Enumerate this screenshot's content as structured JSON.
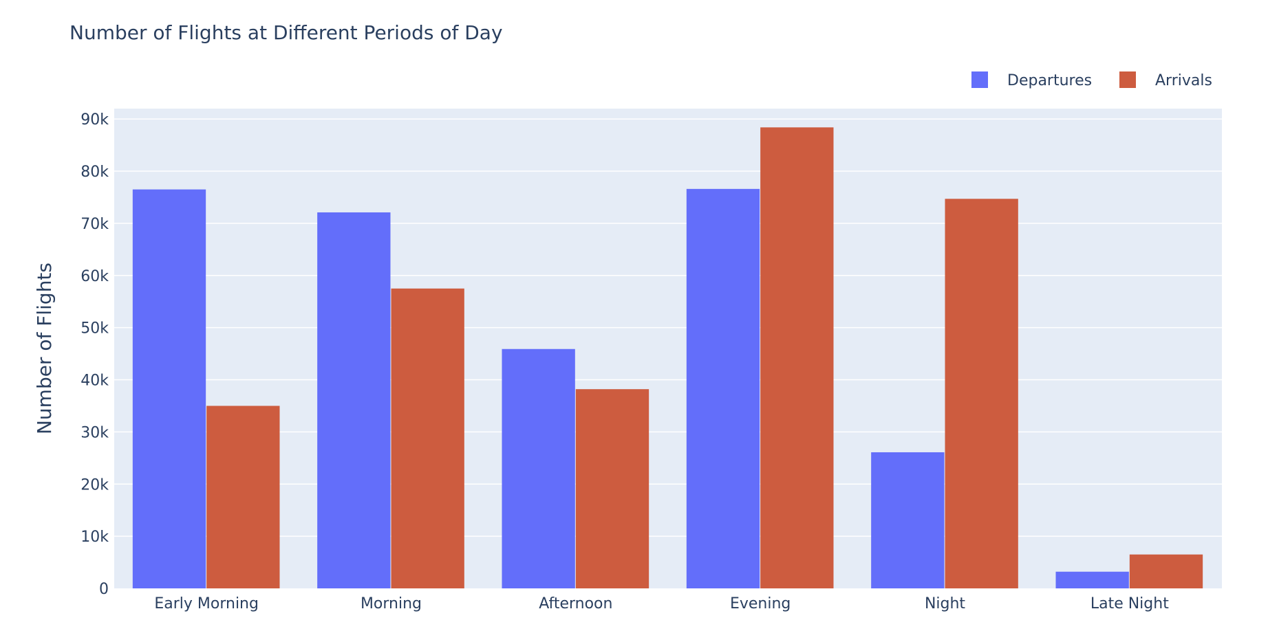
{
  "chart_data": {
    "type": "bar",
    "title": "Number of Flights at Different Periods of Day",
    "xlabel": "",
    "ylabel": "Number of Flights",
    "categories": [
      "Early Morning",
      "Morning",
      "Afternoon",
      "Evening",
      "Night",
      "Late Night"
    ],
    "series": [
      {
        "name": "Departures",
        "color": "#636efa",
        "values": [
          76500,
          72100,
          45900,
          76600,
          26100,
          3200
        ]
      },
      {
        "name": "Arrivals",
        "color": "#cd5c3f",
        "values": [
          35000,
          57500,
          38200,
          88400,
          74700,
          6500
        ]
      }
    ],
    "ylim": [
      0,
      92000
    ],
    "yticks": [
      0,
      10000,
      20000,
      30000,
      40000,
      50000,
      60000,
      70000,
      80000,
      90000
    ],
    "ytick_labels": [
      "0",
      "10k",
      "20k",
      "30k",
      "40k",
      "50k",
      "60k",
      "70k",
      "80k",
      "90k"
    ],
    "legend_position": "top-right",
    "plot_background": "#e5ecf6",
    "grid": true
  }
}
